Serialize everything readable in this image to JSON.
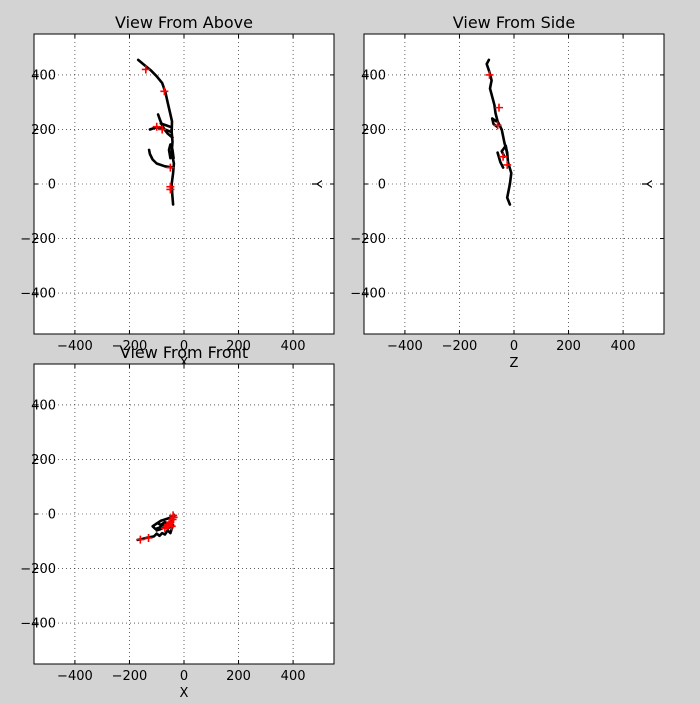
{
  "chart_data": [
    {
      "type": "line",
      "title": "View From Above",
      "xlabel": "X",
      "ylabel": "Y",
      "xlim": [
        -550,
        550
      ],
      "ylim": [
        -550,
        550
      ],
      "xticks": [
        -400,
        -200,
        0,
        200,
        400
      ],
      "yticks": [
        -400,
        -200,
        0,
        200,
        400
      ],
      "xtick_labels": [
        "−400",
        "−200",
        "0",
        "200",
        "400"
      ],
      "ytick_labels": [
        "−400",
        "−200",
        "0",
        "200",
        "400"
      ],
      "grid": true,
      "trace_color": "#000000",
      "marker_color": "#ff0000",
      "paths": [
        [
          [
            -40,
            -75
          ],
          [
            -43,
            -40
          ],
          [
            -45,
            0
          ],
          [
            -40,
            40
          ],
          [
            -37,
            75
          ],
          [
            -45,
            115
          ],
          [
            -42,
            155
          ],
          [
            -45,
            190
          ],
          [
            -44,
            230
          ],
          [
            -52,
            265
          ],
          [
            -60,
            300
          ],
          [
            -68,
            335
          ],
          [
            -80,
            370
          ],
          [
            -100,
            395
          ],
          [
            -120,
            415
          ],
          [
            -150,
            440
          ],
          [
            -168,
            455
          ]
        ],
        [
          [
            -45,
            190
          ],
          [
            -70,
            200
          ],
          [
            -90,
            208
          ],
          [
            -110,
            205
          ],
          [
            -125,
            200
          ]
        ],
        [
          [
            -45,
            208
          ],
          [
            -65,
            215
          ],
          [
            -85,
            222
          ]
        ],
        [
          [
            -40,
            60
          ],
          [
            -70,
            65
          ],
          [
            -100,
            75
          ],
          [
            -115,
            90
          ],
          [
            -125,
            110
          ],
          [
            -128,
            125
          ]
        ],
        [
          [
            -42,
            170
          ],
          [
            -60,
            185
          ],
          [
            -72,
            200
          ],
          [
            -80,
            215
          ],
          [
            -88,
            235
          ],
          [
            -95,
            255
          ]
        ],
        [
          [
            -38,
            95
          ],
          [
            -42,
            125
          ],
          [
            -50,
            145
          ],
          [
            -55,
            125
          ],
          [
            -50,
            95
          ]
        ]
      ],
      "markers": [
        [
          -72,
          340
        ],
        [
          -50,
          -10
        ],
        [
          -50,
          60
        ],
        [
          -100,
          210
        ],
        [
          -140,
          420
        ],
        [
          -80,
          200
        ],
        [
          -50,
          -20
        ]
      ]
    },
    {
      "type": "line",
      "title": "View From Side",
      "xlabel": "Z",
      "ylabel": "Y",
      "xlim": [
        -550,
        550
      ],
      "ylim": [
        -550,
        550
      ],
      "xticks": [
        -400,
        -200,
        0,
        200,
        400
      ],
      "yticks": [
        -400,
        -200,
        0,
        200,
        400
      ],
      "xtick_labels": [
        "−400",
        "−200",
        "0",
        "200",
        "400"
      ],
      "ytick_labels": [
        "−400",
        "−200",
        "0",
        "200",
        "400"
      ],
      "grid": true,
      "trace_color": "#000000",
      "marker_color": "#ff0000",
      "paths": [
        [
          [
            -15,
            -75
          ],
          [
            -25,
            -50
          ],
          [
            -15,
            0
          ],
          [
            -10,
            40
          ],
          [
            -22,
            80
          ],
          [
            -25,
            115
          ],
          [
            -35,
            150
          ],
          [
            -40,
            175
          ],
          [
            -45,
            200
          ],
          [
            -60,
            230
          ],
          [
            -68,
            260
          ],
          [
            -72,
            290
          ],
          [
            -80,
            320
          ],
          [
            -88,
            350
          ],
          [
            -82,
            380
          ],
          [
            -90,
            410
          ],
          [
            -100,
            440
          ],
          [
            -92,
            455
          ]
        ],
        [
          [
            -65,
            230
          ],
          [
            -80,
            240
          ],
          [
            -75,
            220
          ],
          [
            -62,
            210
          ]
        ],
        [
          [
            -35,
            100
          ],
          [
            -45,
            120
          ],
          [
            -30,
            140
          ],
          [
            -25,
            110
          ]
        ],
        [
          [
            -40,
            60
          ],
          [
            -50,
            80
          ],
          [
            -60,
            115
          ]
        ]
      ],
      "markers": [
        [
          -90,
          400
        ],
        [
          -55,
          280
        ],
        [
          -60,
          215
        ],
        [
          -40,
          100
        ],
        [
          -25,
          70
        ]
      ]
    },
    {
      "type": "line",
      "title": "View From Front",
      "xlabel": "X",
      "ylabel": "",
      "xlim": [
        -550,
        550
      ],
      "ylim": [
        -550,
        550
      ],
      "xticks": [
        -400,
        -200,
        0,
        200,
        400
      ],
      "yticks": [
        -400,
        -200,
        0,
        200,
        400
      ],
      "xtick_labels": [
        "−400",
        "−200",
        "0",
        "200",
        "400"
      ],
      "ytick_labels": [
        "−400",
        "−200",
        "0",
        "200",
        "400"
      ],
      "grid": true,
      "trace_color": "#000000",
      "marker_color": "#ff0000",
      "paths": [
        [
          [
            -170,
            -95
          ],
          [
            -155,
            -92
          ],
          [
            -140,
            -88
          ],
          [
            -125,
            -85
          ],
          [
            -110,
            -82
          ],
          [
            -100,
            -72
          ],
          [
            -90,
            -80
          ],
          [
            -80,
            -70
          ],
          [
            -70,
            -75
          ],
          [
            -60,
            -60
          ],
          [
            -50,
            -70
          ],
          [
            -45,
            -55
          ],
          [
            -40,
            -40
          ],
          [
            -50,
            -30
          ],
          [
            -60,
            -45
          ],
          [
            -80,
            -40
          ],
          [
            -90,
            -50
          ],
          [
            -105,
            -55
          ],
          [
            -115,
            -45
          ],
          [
            -100,
            -35
          ],
          [
            -85,
            -25
          ],
          [
            -70,
            -20
          ],
          [
            -55,
            -15
          ],
          [
            -42,
            -8
          ],
          [
            -38,
            -20
          ],
          [
            -50,
            -35
          ]
        ],
        [
          [
            -100,
            -60
          ],
          [
            -85,
            -55
          ],
          [
            -70,
            -48
          ],
          [
            -60,
            -35
          ],
          [
            -70,
            -30
          ],
          [
            -85,
            -40
          ],
          [
            -95,
            -35
          ]
        ],
        [
          [
            -60,
            -55
          ],
          [
            -50,
            -45
          ],
          [
            -45,
            -30
          ],
          [
            -40,
            -15
          ],
          [
            -35,
            -5
          ]
        ]
      ],
      "markers": [
        [
          -42,
          -20
        ],
        [
          -40,
          -5
        ],
        [
          -55,
          -38
        ],
        [
          -62,
          -45
        ],
        [
          -50,
          -30
        ],
        [
          -45,
          -45
        ],
        [
          -130,
          -88
        ],
        [
          -70,
          -52
        ],
        [
          -160,
          -94
        ],
        [
          -38,
          -12
        ]
      ]
    }
  ]
}
